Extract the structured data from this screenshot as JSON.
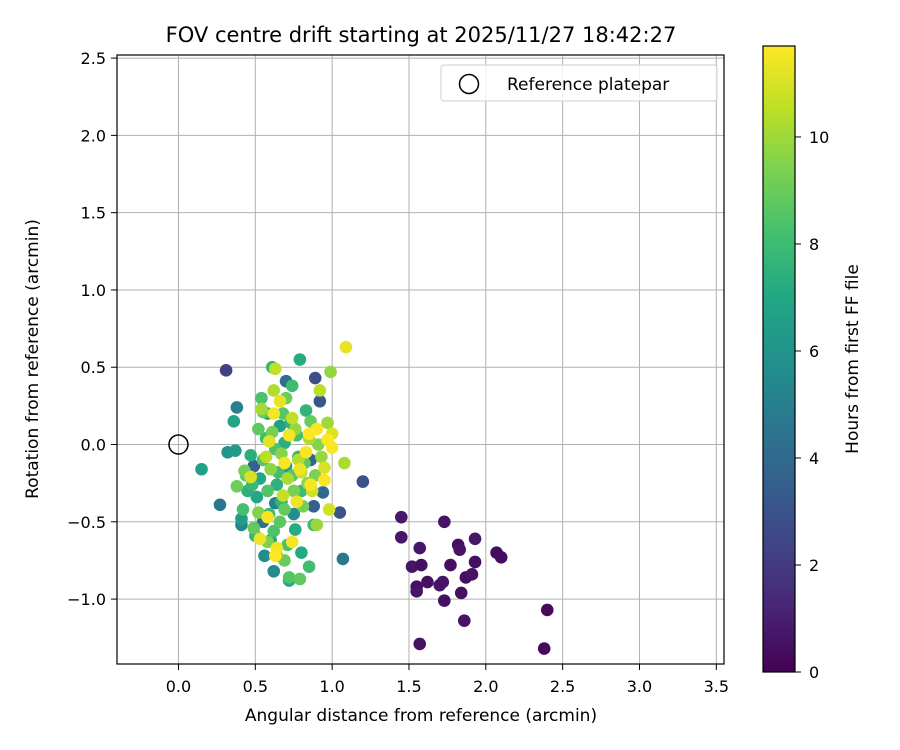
{
  "chart_data": {
    "type": "scatter",
    "title": "FOV centre drift starting at 2025/11/27 18:42:27",
    "xlabel": "Angular distance from reference (arcmin)",
    "ylabel": "Rotation from reference (arcmin)",
    "xlim": [
      -0.4,
      3.55
    ],
    "ylim": [
      -1.42,
      2.52
    ],
    "x_ticks": [
      0.0,
      0.5,
      1.0,
      1.5,
      2.0,
      2.5,
      3.0,
      3.5
    ],
    "x_tick_labels": [
      "0.0",
      "0.5",
      "1.0",
      "1.5",
      "2.0",
      "2.5",
      "3.0",
      "3.5"
    ],
    "y_ticks": [
      -1.0,
      -0.5,
      0.0,
      0.5,
      1.0,
      1.5,
      2.0,
      2.5
    ],
    "y_tick_labels": [
      "−1.0",
      "−0.5",
      "0.0",
      "0.5",
      "1.0",
      "1.5",
      "2.0",
      "2.5"
    ],
    "grid": true,
    "legend": {
      "position": "top-right",
      "entries": [
        "Reference platepar"
      ]
    },
    "reference": {
      "x": 0.0,
      "y": 0.0,
      "label": "Reference platepar"
    },
    "colorbar": {
      "label": "Hours from first FF file",
      "colormap": "viridis",
      "range": [
        0,
        11.7
      ],
      "ticks": [
        0,
        2,
        4,
        6,
        8,
        10
      ],
      "tick_labels": [
        "0",
        "2",
        "4",
        "6",
        "8",
        "10"
      ]
    },
    "points": [
      {
        "x": 1.45,
        "y": -0.47,
        "h": 0.8
      },
      {
        "x": 1.45,
        "y": -0.6,
        "h": 0.7
      },
      {
        "x": 1.52,
        "y": -0.79,
        "h": 0.6
      },
      {
        "x": 1.55,
        "y": -0.92,
        "h": 0.5
      },
      {
        "x": 1.55,
        "y": -0.95,
        "h": 0.6
      },
      {
        "x": 1.57,
        "y": -0.67,
        "h": 0.7
      },
      {
        "x": 1.58,
        "y": -0.78,
        "h": 0.5
      },
      {
        "x": 1.57,
        "y": -1.29,
        "h": 0.6
      },
      {
        "x": 1.62,
        "y": -0.89,
        "h": 0.5
      },
      {
        "x": 1.7,
        "y": -0.91,
        "h": 0.7
      },
      {
        "x": 1.72,
        "y": -0.89,
        "h": 0.6
      },
      {
        "x": 1.73,
        "y": -0.5,
        "h": 0.6
      },
      {
        "x": 1.73,
        "y": -1.01,
        "h": 0.5
      },
      {
        "x": 1.77,
        "y": -0.78,
        "h": 0.5
      },
      {
        "x": 1.82,
        "y": -0.65,
        "h": 0.5
      },
      {
        "x": 1.83,
        "y": -0.68,
        "h": 0.6
      },
      {
        "x": 1.84,
        "y": -0.96,
        "h": 0.5
      },
      {
        "x": 1.86,
        "y": -1.14,
        "h": 0.6
      },
      {
        "x": 1.87,
        "y": -0.86,
        "h": 0.5
      },
      {
        "x": 1.91,
        "y": -0.84,
        "h": 0.6
      },
      {
        "x": 1.93,
        "y": -0.61,
        "h": 0.7
      },
      {
        "x": 1.93,
        "y": -0.76,
        "h": 0.5
      },
      {
        "x": 2.07,
        "y": -0.7,
        "h": 0.4
      },
      {
        "x": 2.1,
        "y": -0.73,
        "h": 0.4
      },
      {
        "x": 2.38,
        "y": -1.32,
        "h": 0.3
      },
      {
        "x": 2.4,
        "y": -1.07,
        "h": 0.3
      },
      {
        "x": 0.31,
        "y": 0.48,
        "h": 2.2
      },
      {
        "x": 0.89,
        "y": 0.43,
        "h": 2.8
      },
      {
        "x": 1.2,
        "y": -0.24,
        "h": 2.9
      },
      {
        "x": 1.05,
        "y": -0.44,
        "h": 3.0
      },
      {
        "x": 0.92,
        "y": 0.28,
        "h": 3.1
      },
      {
        "x": 0.88,
        "y": -0.4,
        "h": 3.5
      },
      {
        "x": 0.49,
        "y": -0.14,
        "h": 3.6
      },
      {
        "x": 0.86,
        "y": -0.1,
        "h": 3.9
      },
      {
        "x": 0.94,
        "y": -0.31,
        "h": 4.0
      },
      {
        "x": 0.7,
        "y": 0.41,
        "h": 4.2
      },
      {
        "x": 0.55,
        "y": -0.5,
        "h": 4.3
      },
      {
        "x": 0.27,
        "y": -0.39,
        "h": 4.6
      },
      {
        "x": 1.07,
        "y": -0.74,
        "h": 4.7
      },
      {
        "x": 0.38,
        "y": 0.24,
        "h": 5.0
      },
      {
        "x": 0.63,
        "y": -0.38,
        "h": 5.2
      },
      {
        "x": 0.41,
        "y": -0.52,
        "h": 5.3
      },
      {
        "x": 0.62,
        "y": -0.82,
        "h": 5.5
      },
      {
        "x": 0.56,
        "y": -0.72,
        "h": 5.6
      },
      {
        "x": 0.75,
        "y": -0.45,
        "h": 5.7
      },
      {
        "x": 0.32,
        "y": -0.05,
        "h": 6.0
      },
      {
        "x": 0.37,
        "y": -0.04,
        "h": 6.3
      },
      {
        "x": 0.15,
        "y": -0.16,
        "h": 6.6
      },
      {
        "x": 0.36,
        "y": 0.15,
        "h": 6.8
      },
      {
        "x": 0.41,
        "y": -0.48,
        "h": 6.5
      },
      {
        "x": 0.51,
        "y": -0.34,
        "h": 6.9
      },
      {
        "x": 0.58,
        "y": 0.2,
        "h": 7.0
      },
      {
        "x": 0.6,
        "y": -0.62,
        "h": 6.8
      },
      {
        "x": 0.66,
        "y": 0.12,
        "h": 6.6
      },
      {
        "x": 0.7,
        "y": -0.14,
        "h": 6.4
      },
      {
        "x": 0.72,
        "y": -0.88,
        "h": 6.9
      },
      {
        "x": 0.79,
        "y": 0.55,
        "h": 7.2
      },
      {
        "x": 0.8,
        "y": -0.7,
        "h": 7.1
      },
      {
        "x": 0.47,
        "y": -0.07,
        "h": 7.3
      },
      {
        "x": 0.53,
        "y": -0.22,
        "h": 7.0
      },
      {
        "x": 0.45,
        "y": -0.3,
        "h": 7.4
      },
      {
        "x": 0.64,
        "y": -0.26,
        "h": 7.5
      },
      {
        "x": 0.69,
        "y": 0.01,
        "h": 7.3
      },
      {
        "x": 0.76,
        "y": -0.55,
        "h": 7.2
      },
      {
        "x": 0.83,
        "y": 0.22,
        "h": 7.6
      },
      {
        "x": 0.61,
        "y": 0.5,
        "h": 7.8
      },
      {
        "x": 0.74,
        "y": 0.38,
        "h": 8.0
      },
      {
        "x": 0.5,
        "y": -0.59,
        "h": 7.7
      },
      {
        "x": 0.59,
        "y": -0.45,
        "h": 7.9
      },
      {
        "x": 0.67,
        "y": -0.37,
        "h": 7.6
      },
      {
        "x": 0.85,
        "y": -0.79,
        "h": 8.1
      },
      {
        "x": 0.88,
        "y": -0.52,
        "h": 7.9
      },
      {
        "x": 0.57,
        "y": 0.04,
        "h": 8.0
      },
      {
        "x": 0.73,
        "y": 0.14,
        "h": 7.5
      },
      {
        "x": 0.42,
        "y": -0.42,
        "h": 8.2
      },
      {
        "x": 0.48,
        "y": -0.26,
        "h": 7.8
      },
      {
        "x": 0.65,
        "y": -0.18,
        "h": 8.1
      },
      {
        "x": 0.78,
        "y": -0.08,
        "h": 7.7
      },
      {
        "x": 0.54,
        "y": 0.3,
        "h": 8.3
      },
      {
        "x": 0.62,
        "y": -0.56,
        "h": 8.4
      },
      {
        "x": 0.8,
        "y": -0.3,
        "h": 8.0
      },
      {
        "x": 0.55,
        "y": -0.1,
        "h": 8.5
      },
      {
        "x": 0.71,
        "y": -0.65,
        "h": 8.3
      },
      {
        "x": 0.68,
        "y": 0.2,
        "h": 8.6
      },
      {
        "x": 0.77,
        "y": 0.06,
        "h": 8.2
      },
      {
        "x": 0.44,
        "y": -0.2,
        "h": 8.7
      },
      {
        "x": 0.52,
        "y": 0.1,
        "h": 8.8
      },
      {
        "x": 0.63,
        "y": -0.03,
        "h": 8.4
      },
      {
        "x": 0.69,
        "y": -0.42,
        "h": 8.9
      },
      {
        "x": 0.74,
        "y": -0.2,
        "h": 8.6
      },
      {
        "x": 0.82,
        "y": -0.12,
        "h": 8.8
      },
      {
        "x": 0.58,
        "y": -0.3,
        "h": 8.5
      },
      {
        "x": 0.66,
        "y": -0.5,
        "h": 8.7
      },
      {
        "x": 0.49,
        "y": -0.54,
        "h": 8.9
      },
      {
        "x": 0.86,
        "y": 0.15,
        "h": 9.0
      },
      {
        "x": 0.72,
        "y": -0.86,
        "h": 8.5
      },
      {
        "x": 0.79,
        "y": -0.87,
        "h": 8.8
      },
      {
        "x": 0.69,
        "y": -0.75,
        "h": 9.0
      },
      {
        "x": 0.38,
        "y": -0.27,
        "h": 9.1
      },
      {
        "x": 0.43,
        "y": -0.17,
        "h": 9.2
      },
      {
        "x": 0.55,
        "y": 0.21,
        "h": 9.0
      },
      {
        "x": 0.61,
        "y": 0.08,
        "h": 9.3
      },
      {
        "x": 0.7,
        "y": 0.3,
        "h": 9.1
      },
      {
        "x": 0.75,
        "y": -0.3,
        "h": 9.3
      },
      {
        "x": 0.81,
        "y": -0.4,
        "h": 9.2
      },
      {
        "x": 0.89,
        "y": -0.2,
        "h": 9.4
      },
      {
        "x": 0.91,
        "y": 0.0,
        "h": 9.5
      },
      {
        "x": 0.58,
        "y": -0.63,
        "h": 9.4
      },
      {
        "x": 0.64,
        "y": -0.72,
        "h": 9.6
      },
      {
        "x": 0.52,
        "y": -0.44,
        "h": 9.5
      },
      {
        "x": 0.6,
        "y": -0.16,
        "h": 9.7
      },
      {
        "x": 0.67,
        "y": -0.06,
        "h": 9.6
      },
      {
        "x": 0.76,
        "y": 0.1,
        "h": 9.8
      },
      {
        "x": 0.84,
        "y": -0.25,
        "h": 9.7
      },
      {
        "x": 0.93,
        "y": -0.08,
        "h": 9.9
      },
      {
        "x": 0.97,
        "y": 0.14,
        "h": 10.0
      },
      {
        "x": 0.99,
        "y": 0.47,
        "h": 9.8
      },
      {
        "x": 0.9,
        "y": -0.52,
        "h": 9.9
      },
      {
        "x": 1.08,
        "y": -0.12,
        "h": 10.2
      },
      {
        "x": 0.54,
        "y": 0.23,
        "h": 10.1
      },
      {
        "x": 0.62,
        "y": 0.35,
        "h": 10.3
      },
      {
        "x": 0.71,
        "y": -0.22,
        "h": 10.2
      },
      {
        "x": 0.78,
        "y": -0.1,
        "h": 10.4
      },
      {
        "x": 0.85,
        "y": 0.04,
        "h": 10.3
      },
      {
        "x": 0.92,
        "y": 0.35,
        "h": 10.5
      },
      {
        "x": 0.57,
        "y": -0.08,
        "h": 10.5
      },
      {
        "x": 0.63,
        "y": 0.49,
        "h": 10.6
      },
      {
        "x": 0.68,
        "y": -0.33,
        "h": 10.7
      },
      {
        "x": 0.74,
        "y": 0.17,
        "h": 10.6
      },
      {
        "x": 0.8,
        "y": -0.18,
        "h": 10.8
      },
      {
        "x": 0.87,
        "y": -0.3,
        "h": 10.9
      },
      {
        "x": 0.95,
        "y": -0.15,
        "h": 11.0
      },
      {
        "x": 1.0,
        "y": 0.07,
        "h": 11.1
      },
      {
        "x": 0.98,
        "y": -0.42,
        "h": 10.9
      },
      {
        "x": 1.09,
        "y": 0.63,
        "h": 11.3
      },
      {
        "x": 0.47,
        "y": -0.21,
        "h": 11.0
      },
      {
        "x": 0.53,
        "y": -0.61,
        "h": 11.4
      },
      {
        "x": 0.59,
        "y": 0.02,
        "h": 11.2
      },
      {
        "x": 0.64,
        "y": -0.67,
        "h": 11.5
      },
      {
        "x": 0.66,
        "y": 0.28,
        "h": 11.3
      },
      {
        "x": 0.72,
        "y": 0.06,
        "h": 11.5
      },
      {
        "x": 0.77,
        "y": -0.37,
        "h": 11.4
      },
      {
        "x": 0.83,
        "y": -0.05,
        "h": 11.6
      },
      {
        "x": 0.86,
        "y": -0.26,
        "h": 11.5
      },
      {
        "x": 0.9,
        "y": 0.1,
        "h": 11.6
      },
      {
        "x": 0.95,
        "y": -0.23,
        "h": 11.7
      },
      {
        "x": 1.0,
        "y": -0.02,
        "h": 11.6
      },
      {
        "x": 0.62,
        "y": 0.2,
        "h": 11.5
      },
      {
        "x": 0.69,
        "y": -0.12,
        "h": 11.6
      },
      {
        "x": 0.63,
        "y": -0.72,
        "h": 11.7
      },
      {
        "x": 0.74,
        "y": -0.63,
        "h": 11.5
      },
      {
        "x": 0.58,
        "y": -0.47,
        "h": 11.6
      },
      {
        "x": 0.85,
        "y": 0.07,
        "h": 11.7
      },
      {
        "x": 0.97,
        "y": 0.03,
        "h": 11.7
      },
      {
        "x": 0.79,
        "y": -0.16,
        "h": 11.4
      }
    ]
  }
}
